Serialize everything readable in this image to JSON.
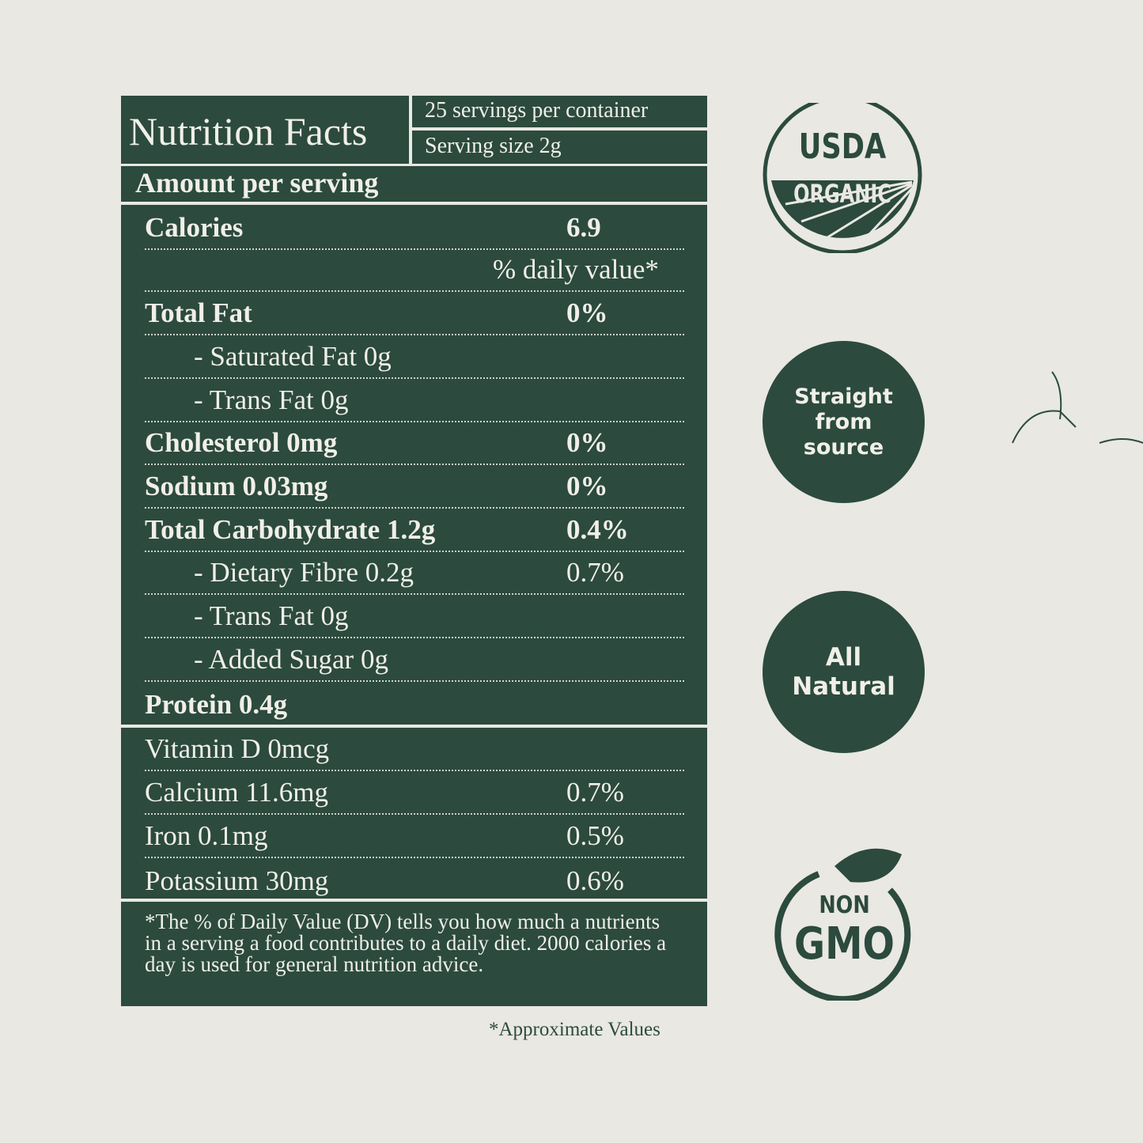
{
  "header": {
    "title": "Nutrition Facts",
    "servings": "25 servings per container",
    "serving_size": "Serving size 2g"
  },
  "amount_label": "Amount per serving",
  "main_rows": [
    {
      "name": "Calories",
      "value": "6.9",
      "bold": true
    },
    {
      "name": "",
      "value": "% daily value*",
      "bold": false
    },
    {
      "name": "Total Fat",
      "value": "0%",
      "bold": true
    },
    {
      "name": "- Saturated Fat 0g",
      "value": "",
      "bold": false,
      "indent": true
    },
    {
      "name": "- Trans Fat 0g",
      "value": "",
      "bold": false,
      "indent": true
    },
    {
      "name": "Cholesterol 0mg",
      "value": "0%",
      "bold": true
    },
    {
      "name": "Sodium 0.03mg",
      "value": "0%",
      "bold": true
    },
    {
      "name": "Total Carbohydrate 1.2g",
      "value": "0.4%",
      "bold": true
    },
    {
      "name": "- Dietary Fibre 0.2g",
      "value": "0.7%",
      "bold": false,
      "indent": true
    },
    {
      "name": "- Trans Fat 0g",
      "value": "",
      "bold": false,
      "indent": true
    },
    {
      "name": "- Added Sugar 0g",
      "value": "",
      "bold": false,
      "indent": true
    },
    {
      "name": "Protein 0.4g",
      "value": "",
      "bold": true
    }
  ],
  "vitamin_rows": [
    {
      "name": "Vitamin D 0mcg",
      "value": ""
    },
    {
      "name": "Calcium 11.6mg",
      "value": "0.7%"
    },
    {
      "name": "Iron 0.1mg",
      "value": "0.5%"
    },
    {
      "name": "Potassium 30mg",
      "value": "0.6%"
    }
  ],
  "footnote": "*The % of Daily Value (DV) tells you how much a nutrients in a serving a food contributes to a daily diet. 2000 calories a day is used for general nutrition advice.",
  "approx_note": "*Approximate Values",
  "badges": {
    "usda_top": "USDA",
    "usda_bottom": "ORGANIC",
    "straight": [
      "Straight",
      "from",
      "source"
    ],
    "natural": [
      "All",
      "Natural"
    ],
    "nongmo_top": "NON",
    "nongmo_bottom": "GMO"
  },
  "colors": {
    "green": "#2c4a3e",
    "background": "#e9e8e2",
    "text": "#f0efe8"
  }
}
